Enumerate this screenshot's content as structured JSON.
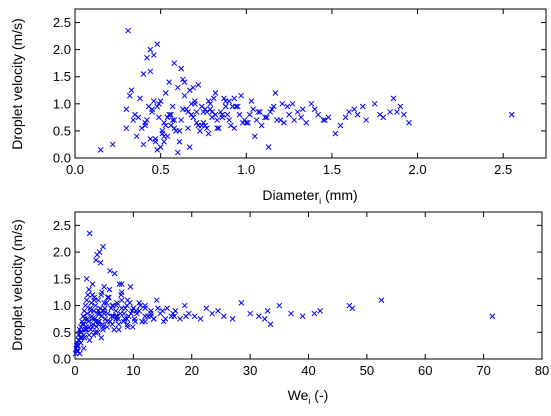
{
  "chart_data": [
    {
      "type": "scatter",
      "title": "",
      "xlabel": "Diameter",
      "xlabel_subscript": "i",
      "xlabel_suffix": " (mm)",
      "ylabel": "Droplet velocity (m/s)",
      "xlim": [
        0,
        2.75
      ],
      "ylim": [
        0,
        2.75
      ],
      "xticks": [
        0.0,
        0.5,
        1.0,
        1.5,
        2.0,
        2.5
      ],
      "xtick_labels": [
        "0.0",
        "0.5",
        "1.0",
        "1.5",
        "2.0",
        "2.5"
      ],
      "yticks": [
        0.0,
        0.5,
        1.0,
        1.5,
        2.0,
        2.5
      ],
      "ytick_labels": [
        "0.0",
        "0.5",
        "1.0",
        "1.5",
        "2.0",
        "2.5"
      ],
      "marker": "x",
      "color": "#0000ff",
      "grid": false,
      "series": [
        {
          "x": [
            0.15,
            0.22,
            0.3,
            0.31,
            0.33,
            0.35,
            0.38,
            0.4,
            0.42,
            0.44,
            0.46,
            0.47,
            0.48,
            0.49,
            0.5,
            0.51,
            0.52,
            0.53,
            0.55,
            0.57,
            0.58,
            0.6,
            0.62,
            0.64,
            0.66,
            0.68,
            0.7,
            0.72,
            0.74,
            0.76,
            0.78,
            0.8,
            0.82,
            0.85,
            0.88,
            0.9,
            0.93,
            0.96,
            1.0,
            1.04,
            1.08,
            1.12,
            1.16,
            1.2,
            1.25,
            1.3,
            1.35,
            1.4,
            1.45,
            1.52,
            1.58,
            1.63,
            1.7,
            1.8,
            1.86,
            1.88,
            1.9,
            1.92,
            1.95,
            2.55,
            0.32,
            0.36,
            0.41,
            0.45,
            0.5,
            0.54,
            0.59,
            0.63,
            0.67,
            0.71,
            0.75,
            0.79,
            0.83,
            0.87,
            0.91,
            0.95,
            0.99,
            1.03,
            1.07,
            1.11,
            1.15,
            1.22,
            1.28,
            1.33,
            1.42,
            1.48,
            1.55,
            1.65,
            1.75,
            1.84,
            0.34,
            0.39,
            0.43,
            0.48,
            0.52,
            0.56,
            0.61,
            0.65,
            0.69,
            0.73,
            0.77,
            0.81,
            0.86,
            0.92,
            0.97,
            1.02,
            1.09,
            1.14,
            1.18,
            1.24,
            1.32,
            1.38,
            1.46,
            1.6,
            1.68,
            1.78,
            0.3,
            0.37,
            0.44,
            0.51,
            0.58,
            0.64,
            0.7,
            0.76,
            0.84,
            0.89,
            0.94,
            1.06,
            1.13,
            1.21,
            0.4,
            0.46,
            0.53,
            0.6,
            0.66,
            0.72,
            0.78,
            0.83,
            0.88,
            0.98,
            1.05,
            1.27,
            0.45,
            0.55,
            0.62,
            0.68,
            0.74,
            0.8,
            0.47,
            0.57,
            0.67,
            0.77,
            0.41,
            0.49,
            0.63,
            0.71,
            0.52,
            0.61,
            0.44,
            0.56,
            0.69,
            0.79,
            0.86,
            0.93,
            1.01,
            1.17,
            0.42,
            0.48,
            0.54,
            0.58,
            0.65,
            0.75,
            0.82,
            0.9
          ],
          "y": [
            0.15,
            0.25,
            0.9,
            2.35,
            1.25,
            0.8,
            1.1,
            1.55,
            1.85,
            2.0,
            1.9,
            0.3,
            2.1,
            1.0,
            0.2,
            0.5,
            0.65,
            1.2,
            1.4,
            0.95,
            1.75,
            1.3,
            0.7,
            1.15,
            0.55,
            0.8,
            1.0,
            1.35,
            0.6,
            0.9,
            1.05,
            0.75,
            1.2,
            0.85,
            0.95,
            0.7,
            1.1,
            0.8,
            0.65,
            0.9,
            0.85,
            0.75,
            0.95,
            0.7,
            0.8,
            0.85,
            0.65,
            0.9,
            0.7,
            0.45,
            0.75,
            0.9,
            0.7,
            0.75,
            1.1,
            0.85,
            0.95,
            0.8,
            0.65,
            0.8,
            1.15,
            0.4,
            0.6,
            0.85,
            1.05,
            0.75,
            0.5,
            0.9,
            1.25,
            0.65,
            0.85,
            1.0,
            0.55,
            1.1,
            0.6,
            0.95,
            0.7,
            1.05,
            0.85,
            0.75,
            0.9,
            0.65,
            0.7,
            0.9,
            0.8,
            0.75,
            0.6,
            0.8,
            1.0,
            0.85,
            0.7,
            0.55,
            0.95,
            0.15,
            0.4,
            0.8,
            0.3,
            0.9,
            1.3,
            0.5,
            0.85,
            1.1,
            0.75,
            0.95,
            1.15,
            0.8,
            0.6,
            0.85,
            0.7,
            0.95,
            0.75,
            1.0,
            0.7,
            0.85,
            0.95,
            0.8,
            0.55,
            0.75,
            0.35,
            0.45,
            0.7,
            1.4,
            1.05,
            0.6,
            0.55,
            0.8,
            0.95,
            0.7,
            0.2,
            1.0,
            0.25,
            1.05,
            0.6,
            0.1,
            0.85,
            0.6,
            0.45,
            0.7,
            1.05,
            0.65,
            0.4,
            1.0,
            0.9,
            0.8,
            1.65,
            1.0,
            0.95,
            0.85,
            0.35,
            0.7,
            0.2,
            0.55,
            0.65,
            0.75,
            1.45,
            0.85,
            0.3,
            0.5,
            1.6,
            0.6,
            0.75,
            0.9,
            0.8,
            0.55,
            0.65,
            1.2,
            0.7,
            0.95,
            0.4,
            0.55,
            0.9,
            0.65,
            0.8,
            1.05
          ]
        }
      ]
    },
    {
      "type": "scatter",
      "title": "",
      "xlabel": "We",
      "xlabel_subscript": "i",
      "xlabel_suffix": " (-)",
      "ylabel": "Droplet velocity (m/s)",
      "xlim": [
        0,
        80
      ],
      "ylim": [
        0,
        2.75
      ],
      "xticks": [
        0,
        10,
        20,
        30,
        40,
        50,
        60,
        70,
        80
      ],
      "xtick_labels": [
        "0",
        "10",
        "20",
        "30",
        "40",
        "50",
        "60",
        "70",
        "80"
      ],
      "yticks": [
        0.0,
        0.5,
        1.0,
        1.5,
        2.0,
        2.5
      ],
      "ytick_labels": [
        "0.0",
        "0.5",
        "1.0",
        "1.5",
        "2.0",
        "2.5"
      ],
      "marker": "x",
      "color": "#0000ff",
      "grid": false,
      "series": [
        {
          "x": [
            0.1,
            0.2,
            0.3,
            0.4,
            0.5,
            0.6,
            0.7,
            0.8,
            0.9,
            1.0,
            1.1,
            1.2,
            1.3,
            1.4,
            1.5,
            1.6,
            1.7,
            1.8,
            1.9,
            2.0,
            2.1,
            2.2,
            2.3,
            2.4,
            2.5,
            2.6,
            2.7,
            2.8,
            2.9,
            3.0,
            3.1,
            3.2,
            3.3,
            3.4,
            3.5,
            3.6,
            3.7,
            3.8,
            3.9,
            4.0,
            4.1,
            4.2,
            4.3,
            4.4,
            4.5,
            4.6,
            4.7,
            4.8,
            4.9,
            5.0,
            5.2,
            5.4,
            5.6,
            5.8,
            6.0,
            6.2,
            6.4,
            6.6,
            6.8,
            7.0,
            7.2,
            7.4,
            7.6,
            7.8,
            8.0,
            8.3,
            8.6,
            8.9,
            9.2,
            9.5,
            9.8,
            10.2,
            10.6,
            11.0,
            11.5,
            12.0,
            12.5,
            13.0,
            13.5,
            14.0,
            14.6,
            15.2,
            15.8,
            16.5,
            17.2,
            18.0,
            18.8,
            19.5,
            20.5,
            21.5,
            22.5,
            23.5,
            24.5,
            25.5,
            27.0,
            28.5,
            30.0,
            31.5,
            32.5,
            33.0,
            33.5,
            35.0,
            37.0,
            39.0,
            41.0,
            42.0,
            47.0,
            47.5,
            52.5,
            71.5,
            0.3,
            0.6,
            0.9,
            1.2,
            1.5,
            1.8,
            2.1,
            2.4,
            2.7,
            3.0,
            3.3,
            3.6,
            3.9,
            4.2,
            4.5,
            4.8,
            5.1,
            5.5,
            5.9,
            6.3,
            6.7,
            7.1,
            7.5,
            7.9,
            8.4,
            8.9,
            9.4,
            9.9,
            10.5,
            11.2,
            12.0,
            13.0,
            14.2,
            15.5,
            17.0,
            0.5,
            1.0,
            1.5,
            2.0,
            2.5,
            3.0,
            3.5,
            4.0,
            4.5,
            5.0,
            5.5,
            6.0,
            6.5,
            7.0,
            7.5,
            8.0,
            8.5,
            9.0,
            9.6,
            10.3,
            11.0,
            12.0,
            13.5,
            15.0,
            16.8,
            19.0,
            0.8,
            1.6,
            2.4,
            3.2,
            4.0,
            4.8,
            5.6,
            6.4,
            7.2,
            8.0,
            9.0,
            10.0,
            11.5,
            13.0,
            2.0,
            3.0,
            4.0,
            5.0,
            6.0,
            7.0,
            8.0,
            9.0,
            10.0,
            12.0
          ],
          "y": [
            0.1,
            0.2,
            0.15,
            0.3,
            0.25,
            0.45,
            0.35,
            0.55,
            0.4,
            0.6,
            0.5,
            0.7,
            0.65,
            0.8,
            0.45,
            0.9,
            0.75,
            1.0,
            0.6,
            1.1,
            0.85,
            1.2,
            0.7,
            1.3,
            2.35,
            0.95,
            0.55,
            1.05,
            0.8,
            1.4,
            0.65,
            0.9,
            1.15,
            0.75,
            1.0,
            1.85,
            0.6,
            1.95,
            0.85,
            1.1,
            0.7,
            2.0,
            0.95,
            1.8,
            0.8,
            1.25,
            0.65,
            2.1,
            0.9,
            1.35,
            0.75,
            1.05,
            0.85,
            1.15,
            0.7,
            0.95,
            1.0,
            0.8,
            1.6,
            0.9,
            1.05,
            0.75,
            1.4,
            0.85,
            1.1,
            0.7,
            0.95,
            1.0,
            0.8,
            1.35,
            0.9,
            0.75,
            0.85,
            1.05,
            0.7,
            0.95,
            0.8,
            0.9,
            0.75,
            1.1,
            0.85,
            0.7,
            0.95,
            0.8,
            0.9,
            0.75,
            1.0,
            0.85,
            0.8,
            0.75,
            0.95,
            0.85,
            0.9,
            0.8,
            0.75,
            1.05,
            0.85,
            0.8,
            0.75,
            0.9,
            0.65,
            1.0,
            0.85,
            0.8,
            0.85,
            0.9,
            1.0,
            0.95,
            1.1,
            0.8,
            0.25,
            0.35,
            0.5,
            0.4,
            0.65,
            0.55,
            0.75,
            0.45,
            0.9,
            0.6,
            1.1,
            0.7,
            0.5,
            0.85,
            1.2,
            0.6,
            0.95,
            0.7,
            1.3,
            0.8,
            0.55,
            1.0,
            0.65,
            1.2,
            0.85,
            0.75,
            1.05,
            0.6,
            0.9,
            1.0,
            0.7,
            0.85,
            0.95,
            0.75,
            0.8,
            0.15,
            0.3,
            0.2,
            0.55,
            0.35,
            0.75,
            0.5,
            0.65,
            0.4,
            0.85,
            0.6,
            0.7,
            1.0,
            0.8,
            0.55,
            0.95,
            0.75,
            0.65,
            0.85,
            0.7,
            0.9,
            0.8,
            0.75,
            0.9,
            0.85,
            0.8,
            0.1,
            0.4,
            0.6,
            0.45,
            0.7,
            0.55,
            1.15,
            0.65,
            0.8,
            1.25,
            0.6,
            0.95,
            0.7,
            0.8,
            1.5,
            1.2,
            0.9,
            1.05,
            1.65,
            0.75,
            1.4,
            1.1,
            0.95,
            1.0
          ]
        }
      ]
    }
  ]
}
